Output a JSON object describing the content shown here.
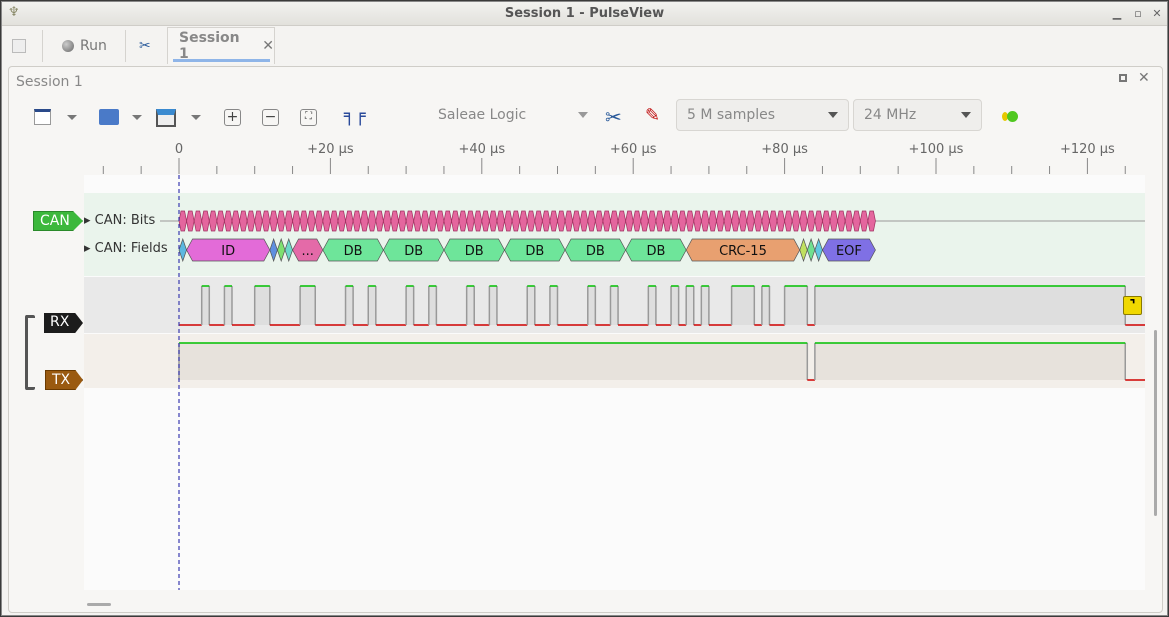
{
  "window": {
    "title": "Session 1 - PulseView",
    "minimize_icon": "minimize-icon",
    "maximize_icon": "maximize-icon",
    "close_icon": "close-icon"
  },
  "tabs": {
    "run_label": "Run",
    "session_tab": "Session 1"
  },
  "session": {
    "title": "Session 1"
  },
  "toolbar": {
    "device": "Saleae Logic",
    "samples": "5 M samples",
    "samplerate": "24 MHz"
  },
  "ruler": {
    "unit": "µs",
    "labels": [
      {
        "t": 0,
        "text": "0"
      },
      {
        "t": 20,
        "text": "+20 µs"
      },
      {
        "t": 40,
        "text": "+40 µs"
      },
      {
        "t": 60,
        "text": "+60 µs"
      },
      {
        "t": 80,
        "text": "+80 µs"
      },
      {
        "t": 100,
        "text": "+100 µs"
      },
      {
        "t": 120,
        "text": "+120 µs"
      }
    ],
    "minor_step_us": 5,
    "range_us": [
      -10,
      125
    ]
  },
  "channels": {
    "can": {
      "tag": "CAN",
      "color": "#3cb83c",
      "rows": [
        "CAN: Bits",
        "CAN: Fields"
      ]
    },
    "rx": {
      "tag": "RX",
      "color": "#1c1c1c",
      "high_intervals_us": [
        [
          3,
          4
        ],
        [
          6,
          7
        ],
        [
          10,
          12
        ],
        [
          16,
          18
        ],
        [
          22,
          23
        ],
        [
          25,
          26
        ],
        [
          30,
          31
        ],
        [
          33,
          34
        ],
        [
          38,
          39
        ],
        [
          41,
          42
        ],
        [
          46,
          47
        ],
        [
          49,
          50
        ],
        [
          54,
          55
        ],
        [
          57,
          58
        ],
        [
          62,
          63
        ],
        [
          65,
          66
        ],
        [
          67,
          68
        ],
        [
          69,
          70
        ],
        [
          73,
          76
        ],
        [
          77,
          78
        ],
        [
          80,
          83
        ],
        [
          84,
          125
        ]
      ]
    },
    "tx": {
      "tag": "TX",
      "color": "#9a5a10",
      "low_intervals_us": [
        [
          83,
          84
        ]
      ]
    }
  },
  "decoder": {
    "bits": {
      "count": 92,
      "bit_time_us": 1,
      "color": "#e4669e"
    },
    "fields": [
      {
        "label": "",
        "start": 0,
        "end": 1,
        "color": "#5bb8e0"
      },
      {
        "label": "ID",
        "start": 1,
        "end": 12,
        "color": "#e36bd8"
      },
      {
        "label": "",
        "start": 12,
        "end": 13,
        "color": "#5f8fe0"
      },
      {
        "label": "",
        "start": 13,
        "end": 14,
        "color": "#7ee070"
      },
      {
        "label": "",
        "start": 14,
        "end": 15,
        "color": "#6cd8c8"
      },
      {
        "label": "...",
        "start": 15,
        "end": 19,
        "color": "#e46aa8"
      },
      {
        "label": "DB",
        "start": 19,
        "end": 27,
        "color": "#6ee59a"
      },
      {
        "label": "DB",
        "start": 27,
        "end": 35,
        "color": "#6ee59a"
      },
      {
        "label": "DB",
        "start": 35,
        "end": 43,
        "color": "#6ee59a"
      },
      {
        "label": "DB",
        "start": 43,
        "end": 51,
        "color": "#6ee59a"
      },
      {
        "label": "DB",
        "start": 51,
        "end": 59,
        "color": "#6ee59a"
      },
      {
        "label": "DB",
        "start": 59,
        "end": 67,
        "color": "#6ee59a"
      },
      {
        "label": "CRC-15",
        "start": 67,
        "end": 82,
        "color": "#e8a070"
      },
      {
        "label": "",
        "start": 82,
        "end": 83,
        "color": "#c0e060"
      },
      {
        "label": "",
        "start": 83,
        "end": 84,
        "color": "#70e090"
      },
      {
        "label": "",
        "start": 84,
        "end": 85,
        "color": "#60c8e0"
      },
      {
        "label": "EOF",
        "start": 85,
        "end": 92,
        "color": "#7f70e5"
      }
    ]
  },
  "cursor_color": "#3a3ab0"
}
